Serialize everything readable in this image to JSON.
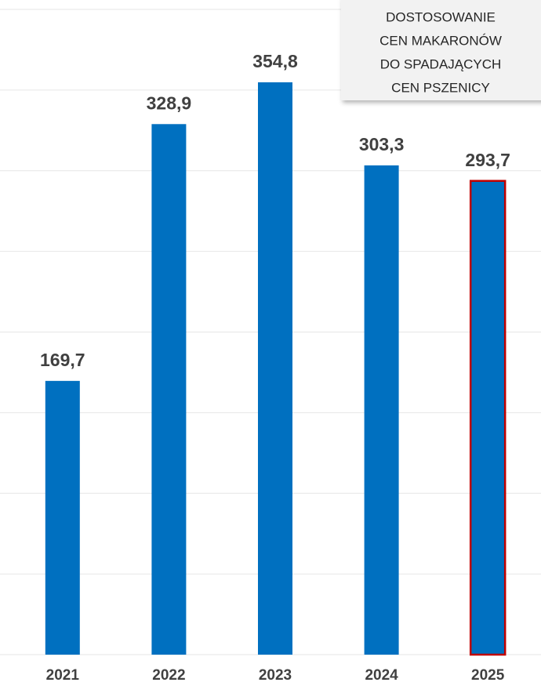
{
  "chart_data": {
    "type": "bar",
    "categories": [
      "2021",
      "2022",
      "2023",
      "2024",
      "2025"
    ],
    "values": [
      169.7,
      328.9,
      354.8,
      303.3,
      293.7
    ],
    "value_labels": [
      "169,7",
      "328,9",
      "354,8",
      "303,3",
      "293,7"
    ],
    "color": "#0070c0",
    "highlight": 4,
    "highlight_color": "#c00000",
    "ylim": [
      0,
      400
    ],
    "yticks": [
      0,
      50,
      100,
      150,
      200,
      250,
      300,
      350,
      400
    ],
    "grid": true,
    "annotation": [
      "DOSTOSOWANIE",
      "CEN MAKARONÓW",
      "DO SPADAJĄCYCH",
      "CEN PSZENICY"
    ]
  }
}
